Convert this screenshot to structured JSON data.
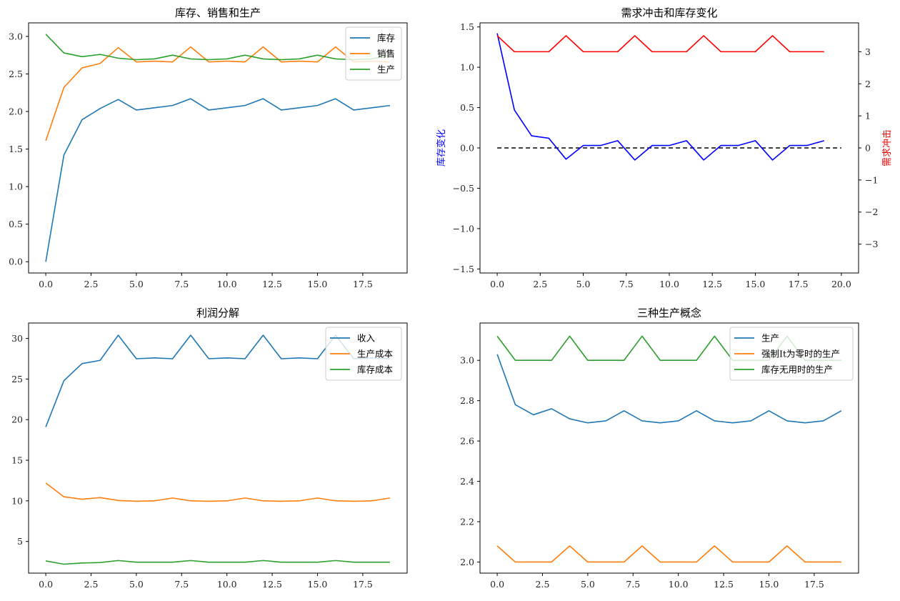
{
  "charts": [
    {
      "title": "库存、销售和生产",
      "legend_loc": "upper right",
      "x": [
        0,
        1,
        2,
        3,
        4,
        5,
        6,
        7,
        8,
        9,
        10,
        11,
        12,
        13,
        14,
        15,
        16,
        17,
        18,
        19
      ],
      "xlim": [
        -0.95,
        19.95
      ],
      "ylim": [
        -0.15,
        3.18
      ],
      "xticks": [
        0,
        2.5,
        5,
        7.5,
        10,
        12.5,
        15,
        17.5
      ],
      "xtick_labels": [
        "0.0",
        "2.5",
        "5.0",
        "7.5",
        "10.0",
        "12.5",
        "15.0",
        "17.5"
      ],
      "yticks": [
        0,
        0.5,
        1.0,
        1.5,
        2.0,
        2.5,
        3.0
      ],
      "ytick_labels": [
        "0.0",
        "0.5",
        "1.0",
        "1.5",
        "2.0",
        "2.5",
        "3.0"
      ],
      "series": [
        {
          "name": "库存",
          "color": "#1f77b4",
          "values": [
            0.0,
            1.42,
            1.89,
            2.04,
            2.16,
            2.02,
            2.05,
            2.08,
            2.17,
            2.02,
            2.05,
            2.08,
            2.17,
            2.02,
            2.05,
            2.08,
            2.17,
            2.02,
            2.05,
            2.08
          ]
        },
        {
          "name": "销售",
          "color": "#ff7f0e",
          "values": [
            1.61,
            2.32,
            2.58,
            2.64,
            2.85,
            2.66,
            2.67,
            2.66,
            2.86,
            2.66,
            2.67,
            2.66,
            2.86,
            2.66,
            2.67,
            2.66,
            2.86,
            2.66,
            2.67,
            2.66
          ]
        },
        {
          "name": "生产",
          "color": "#2ca02c",
          "values": [
            3.03,
            2.78,
            2.73,
            2.76,
            2.71,
            2.69,
            2.7,
            2.75,
            2.7,
            2.69,
            2.7,
            2.75,
            2.7,
            2.69,
            2.7,
            2.75,
            2.7,
            2.69,
            2.7,
            2.75
          ]
        }
      ]
    },
    {
      "title": "需求冲击和库存变化",
      "legend_loc": "",
      "x": [
        0,
        1,
        2,
        3,
        4,
        5,
        6,
        7,
        8,
        9,
        10,
        11,
        12,
        13,
        14,
        15,
        16,
        17,
        18,
        19
      ],
      "xlim": [
        -1.0,
        21.0
      ],
      "ylim": [
        -1.55,
        1.55
      ],
      "xticks": [
        0,
        2.5,
        5,
        7.5,
        10,
        12.5,
        15,
        17.5,
        20
      ],
      "xtick_labels": [
        "0.0",
        "2.5",
        "5.0",
        "7.5",
        "10.0",
        "12.5",
        "15.0",
        "17.5",
        "20.0"
      ],
      "yticks": [
        -1.5,
        -1.0,
        -0.5,
        0.0,
        0.5,
        1.0,
        1.5
      ],
      "ytick_labels": [
        "−1.5",
        "−1.0",
        "−0.5",
        "0.0",
        "0.5",
        "1.0",
        "1.5"
      ],
      "ylabel": "库存变化",
      "ylabel2": "需求冲击",
      "y2lim": [
        -3.9,
        3.9
      ],
      "y2ticks": [
        -3,
        -2,
        -1,
        0,
        1,
        2,
        3
      ],
      "y2tick_labels": [
        "−3",
        "−2",
        "−1",
        "0",
        "1",
        "2",
        "3"
      ],
      "hline": {
        "y": 0,
        "x": [
          0,
          20
        ],
        "color": "#000000"
      },
      "series": [
        {
          "name": "库存变化",
          "color": "#0000ff",
          "axis": "left",
          "values": [
            1.42,
            0.47,
            0.15,
            0.12,
            -0.14,
            0.03,
            0.03,
            0.09,
            -0.15,
            0.03,
            0.03,
            0.09,
            -0.15,
            0.03,
            0.03,
            0.09,
            -0.15,
            0.03,
            0.03,
            0.09
          ]
        },
        {
          "name": "需求冲击",
          "color": "#ff0000",
          "axis": "right",
          "values": [
            3.5,
            3.0,
            3.0,
            3.0,
            3.5,
            3.0,
            3.0,
            3.0,
            3.5,
            3.0,
            3.0,
            3.0,
            3.5,
            3.0,
            3.0,
            3.0,
            3.5,
            3.0,
            3.0,
            3.0
          ]
        }
      ]
    },
    {
      "title": "利润分解",
      "legend_loc": "upper right",
      "x": [
        0,
        1,
        2,
        3,
        4,
        5,
        6,
        7,
        8,
        9,
        10,
        11,
        12,
        13,
        14,
        15,
        16,
        17,
        18,
        19
      ],
      "xlim": [
        -0.95,
        19.95
      ],
      "ylim": [
        1.1,
        31.9
      ],
      "xticks": [
        0,
        2.5,
        5,
        7.5,
        10,
        12.5,
        15,
        17.5
      ],
      "xtick_labels": [
        "0.0",
        "2.5",
        "5.0",
        "7.5",
        "10.0",
        "12.5",
        "15.0",
        "17.5"
      ],
      "yticks": [
        5,
        10,
        15,
        20,
        25,
        30
      ],
      "ytick_labels": [
        "5",
        "10",
        "15",
        "20",
        "25",
        "30"
      ],
      "series": [
        {
          "name": "收入",
          "color": "#1f77b4",
          "values": [
            19.1,
            24.8,
            26.9,
            27.3,
            30.4,
            27.5,
            27.6,
            27.5,
            30.4,
            27.5,
            27.6,
            27.5,
            30.4,
            27.5,
            27.6,
            27.5,
            30.4,
            27.5,
            27.6,
            27.5
          ]
        },
        {
          "name": "生产成本",
          "color": "#ff7f0e",
          "values": [
            12.2,
            10.5,
            10.2,
            10.4,
            10.05,
            9.95,
            10.0,
            10.35,
            10.0,
            9.95,
            10.0,
            10.35,
            10.0,
            9.95,
            10.0,
            10.35,
            10.0,
            9.95,
            10.0,
            10.35
          ]
        },
        {
          "name": "库存成本",
          "color": "#2ca02c",
          "values": [
            2.6,
            2.2,
            2.35,
            2.4,
            2.65,
            2.45,
            2.45,
            2.45,
            2.65,
            2.45,
            2.45,
            2.45,
            2.65,
            2.45,
            2.45,
            2.45,
            2.65,
            2.45,
            2.45,
            2.45
          ]
        }
      ]
    },
    {
      "title": "三种生产概念",
      "legend_loc": "upper right",
      "x": [
        0,
        1,
        2,
        3,
        4,
        5,
        6,
        7,
        8,
        9,
        10,
        11,
        12,
        13,
        14,
        15,
        16,
        17,
        18,
        19
      ],
      "xlim": [
        -0.95,
        19.95
      ],
      "ylim": [
        1.945,
        3.185
      ],
      "xticks": [
        0,
        2.5,
        5,
        7.5,
        10,
        12.5,
        15,
        17.5
      ],
      "xtick_labels": [
        "0.0",
        "2.5",
        "5.0",
        "7.5",
        "10.0",
        "12.5",
        "15.0",
        "17.5"
      ],
      "yticks": [
        2.0,
        2.2,
        2.4,
        2.6,
        2.8,
        3.0
      ],
      "ytick_labels": [
        "2.0",
        "2.2",
        "2.4",
        "2.6",
        "2.8",
        "3.0"
      ],
      "series": [
        {
          "name": "生产",
          "color": "#1f77b4",
          "values": [
            3.03,
            2.78,
            2.73,
            2.76,
            2.71,
            2.69,
            2.7,
            2.75,
            2.7,
            2.69,
            2.7,
            2.75,
            2.7,
            2.69,
            2.7,
            2.75,
            2.7,
            2.69,
            2.7,
            2.75
          ]
        },
        {
          "name": "强制It为零时的生产",
          "color": "#ff7f0e",
          "values": [
            2.08,
            2.0,
            2.0,
            2.0,
            2.08,
            2.0,
            2.0,
            2.0,
            2.08,
            2.0,
            2.0,
            2.0,
            2.08,
            2.0,
            2.0,
            2.0,
            2.08,
            2.0,
            2.0,
            2.0
          ]
        },
        {
          "name": "库存无用时的生产",
          "color": "#2ca02c",
          "values": [
            3.12,
            3.0,
            3.0,
            3.0,
            3.12,
            3.0,
            3.0,
            3.0,
            3.12,
            3.0,
            3.0,
            3.0,
            3.12,
            3.0,
            3.0,
            3.0,
            3.12,
            3.0,
            3.0,
            3.0
          ]
        }
      ]
    }
  ],
  "chart_data": [
    {
      "type": "line",
      "title": "库存、销售和生产",
      "x": [
        0,
        1,
        2,
        3,
        4,
        5,
        6,
        7,
        8,
        9,
        10,
        11,
        12,
        13,
        14,
        15,
        16,
        17,
        18,
        19
      ],
      "series": [
        {
          "name": "库存",
          "values": [
            0.0,
            1.42,
            1.89,
            2.04,
            2.16,
            2.02,
            2.05,
            2.08,
            2.17,
            2.02,
            2.05,
            2.08,
            2.17,
            2.02,
            2.05,
            2.08,
            2.17,
            2.02,
            2.05,
            2.08
          ]
        },
        {
          "name": "销售",
          "values": [
            1.61,
            2.32,
            2.58,
            2.64,
            2.85,
            2.66,
            2.67,
            2.66,
            2.86,
            2.66,
            2.67,
            2.66,
            2.86,
            2.66,
            2.67,
            2.66,
            2.86,
            2.66,
            2.67,
            2.66
          ]
        },
        {
          "name": "生产",
          "values": [
            3.03,
            2.78,
            2.73,
            2.76,
            2.71,
            2.69,
            2.7,
            2.75,
            2.7,
            2.69,
            2.7,
            2.75,
            2.7,
            2.69,
            2.7,
            2.75,
            2.7,
            2.69,
            2.7,
            2.75
          ]
        }
      ],
      "ylim": [
        -0.15,
        3.18
      ],
      "legend": "upper right",
      "grid": false
    },
    {
      "type": "line",
      "title": "需求冲击和库存变化",
      "x": [
        0,
        1,
        2,
        3,
        4,
        5,
        6,
        7,
        8,
        9,
        10,
        11,
        12,
        13,
        14,
        15,
        16,
        17,
        18,
        19
      ],
      "ylabel": "库存变化",
      "ylabel2": "需求冲击",
      "series": [
        {
          "values": [
            1.42,
            0.47,
            0.15,
            0.12,
            -0.14,
            0.03,
            0.03,
            0.09,
            -0.15,
            0.03,
            0.03,
            0.09,
            -0.15,
            0.03,
            0.03,
            0.09,
            -0.15,
            0.03,
            0.03,
            0.09
          ]
        },
        {
          "values": [
            3.5,
            3.0,
            3.0,
            3.0,
            3.5,
            3.0,
            3.0,
            3.0,
            3.5,
            3.0,
            3.0,
            3.0,
            3.5,
            3.0,
            3.0,
            3.0,
            3.5,
            3.0,
            3.0,
            3.0
          ]
        }
      ],
      "ylim": [
        -1.55,
        1.55
      ],
      "y2lim": [
        -3.9,
        3.9
      ],
      "hline_y": 0,
      "grid": false
    },
    {
      "type": "line",
      "title": "利润分解",
      "x": [
        0,
        1,
        2,
        3,
        4,
        5,
        6,
        7,
        8,
        9,
        10,
        11,
        12,
        13,
        14,
        15,
        16,
        17,
        18,
        19
      ],
      "series": [
        {
          "name": "收入",
          "values": [
            19.1,
            24.8,
            26.9,
            27.3,
            30.4,
            27.5,
            27.6,
            27.5,
            30.4,
            27.5,
            27.6,
            27.5,
            30.4,
            27.5,
            27.6,
            27.5,
            30.4,
            27.5,
            27.6,
            27.5
          ]
        },
        {
          "name": "生产成本",
          "values": [
            12.2,
            10.5,
            10.2,
            10.4,
            10.05,
            9.95,
            10.0,
            10.35,
            10.0,
            9.95,
            10.0,
            10.35,
            10.0,
            9.95,
            10.0,
            10.35,
            10.0,
            9.95,
            10.0,
            10.35
          ]
        },
        {
          "name": "库存成本",
          "values": [
            2.6,
            2.2,
            2.35,
            2.4,
            2.65,
            2.45,
            2.45,
            2.45,
            2.65,
            2.45,
            2.45,
            2.45,
            2.65,
            2.45,
            2.45,
            2.45,
            2.65,
            2.45,
            2.45,
            2.45
          ]
        }
      ],
      "ylim": [
        1.1,
        31.9
      ],
      "legend": "upper right",
      "grid": false
    },
    {
      "type": "line",
      "title": "三种生产概念",
      "x": [
        0,
        1,
        2,
        3,
        4,
        5,
        6,
        7,
        8,
        9,
        10,
        11,
        12,
        13,
        14,
        15,
        16,
        17,
        18,
        19
      ],
      "series": [
        {
          "name": "生产",
          "values": [
            3.03,
            2.78,
            2.73,
            2.76,
            2.71,
            2.69,
            2.7,
            2.75,
            2.7,
            2.69,
            2.7,
            2.75,
            2.7,
            2.69,
            2.7,
            2.75,
            2.7,
            2.69,
            2.7,
            2.75
          ]
        },
        {
          "name": "强制It为零时的生产",
          "values": [
            2.08,
            2.0,
            2.0,
            2.0,
            2.08,
            2.0,
            2.0,
            2.0,
            2.08,
            2.0,
            2.0,
            2.0,
            2.08,
            2.0,
            2.0,
            2.0,
            2.08,
            2.0,
            2.0,
            2.0
          ]
        },
        {
          "name": "库存无用时的生产",
          "values": [
            3.12,
            3.0,
            3.0,
            3.0,
            3.12,
            3.0,
            3.0,
            3.0,
            3.12,
            3.0,
            3.0,
            3.0,
            3.12,
            3.0,
            3.0,
            3.0,
            3.12,
            3.0,
            3.0,
            3.0
          ]
        }
      ],
      "ylim": [
        1.945,
        3.185
      ],
      "legend": "upper right",
      "grid": false
    }
  ]
}
